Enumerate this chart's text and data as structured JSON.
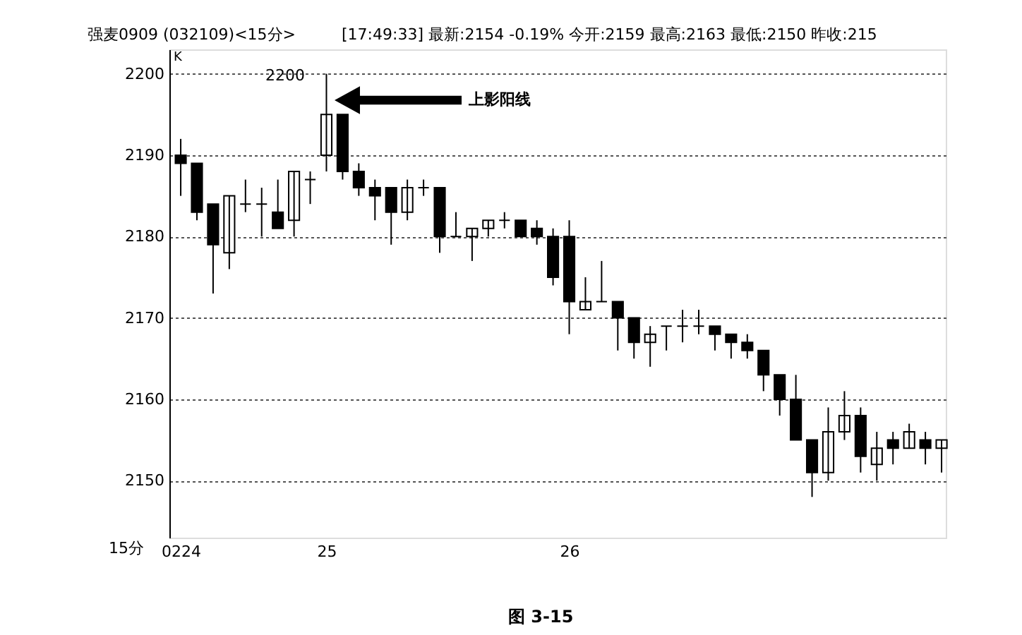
{
  "chart_data": {
    "type": "candlestick",
    "title": "强麦0909 (032109)<15分>",
    "subtitle": "[17:49:33] 最新:2154 -0.19% 今开:2159 最高:2163 最低:2150 昨收:215",
    "xlabel": "15分",
    "categories": [
      "0224",
      null,
      null,
      null,
      null,
      null,
      null,
      null,
      null,
      "25",
      null,
      null,
      null,
      null,
      null,
      null,
      null,
      null,
      null,
      null,
      null,
      null,
      null,
      null,
      "26",
      null,
      null,
      null,
      null,
      null,
      null,
      null,
      null,
      null,
      null,
      null,
      null,
      null,
      null,
      null,
      null,
      null,
      null,
      null,
      null,
      null,
      null,
      null
    ],
    "ohlc": [
      [
        2190,
        2192,
        2185,
        2189
      ],
      [
        2189,
        2189,
        2182,
        2183
      ],
      [
        2184,
        2184,
        2173,
        2179
      ],
      [
        2178,
        2185,
        2176,
        2185
      ],
      [
        2184,
        2187,
        2183,
        2184
      ],
      [
        2184,
        2186,
        2180,
        2184
      ],
      [
        2183,
        2187,
        2181,
        2181
      ],
      [
        2182,
        2188,
        2180,
        2188
      ],
      [
        2187,
        2188,
        2184,
        2187
      ],
      [
        2190,
        2200,
        2188,
        2195
      ],
      [
        2195,
        2195,
        2187,
        2188
      ],
      [
        2188,
        2189,
        2185,
        2186
      ],
      [
        2186,
        2187,
        2182,
        2185
      ],
      [
        2186,
        2186,
        2179,
        2183
      ],
      [
        2183,
        2187,
        2182,
        2186
      ],
      [
        2186,
        2187,
        2185,
        2186
      ],
      [
        2186,
        2186,
        2178,
        2180
      ],
      [
        2180,
        2183,
        2180,
        2180
      ],
      [
        2180,
        2181,
        2177,
        2181
      ],
      [
        2181,
        2182,
        2180,
        2182
      ],
      [
        2182,
        2183,
        2181,
        2182
      ],
      [
        2182,
        2182,
        2180,
        2180
      ],
      [
        2181,
        2182,
        2179,
        2180
      ],
      [
        2180,
        2181,
        2174,
        2175
      ],
      [
        2180,
        2182,
        2168,
        2172
      ],
      [
        2171,
        2175,
        2171,
        2172
      ],
      [
        2172,
        2177,
        2172,
        2172
      ],
      [
        2172,
        2172,
        2166,
        2170
      ],
      [
        2170,
        2170,
        2165,
        2167
      ],
      [
        2167,
        2169,
        2164,
        2168
      ],
      [
        2169,
        2169,
        2166,
        2169
      ],
      [
        2169,
        2171,
        2167,
        2169
      ],
      [
        2169,
        2171,
        2168,
        2169
      ],
      [
        2169,
        2169,
        2166,
        2168
      ],
      [
        2168,
        2168,
        2165,
        2167
      ],
      [
        2167,
        2168,
        2165,
        2166
      ],
      [
        2166,
        2166,
        2161,
        2163
      ],
      [
        2163,
        2163,
        2158,
        2160
      ],
      [
        2160,
        2163,
        2155,
        2155
      ],
      [
        2155,
        2155,
        2148,
        2151
      ],
      [
        2151,
        2159,
        2150,
        2156
      ],
      [
        2156,
        2161,
        2155,
        2158
      ],
      [
        2158,
        2159,
        2151,
        2153
      ],
      [
        2152,
        2156,
        2150,
        2154
      ],
      [
        2155,
        2156,
        2152,
        2154
      ],
      [
        2154,
        2157,
        2154,
        2156
      ],
      [
        2155,
        2156,
        2152,
        2154
      ],
      [
        2154,
        2155,
        2151,
        2155
      ]
    ],
    "colors": [
      "#000000",
      "#000000",
      "#000000",
      "#ffffff",
      "#000000",
      "#000000",
      "#000000",
      "#ffffff",
      "#000000",
      "#ffffff",
      "#000000",
      "#000000",
      "#000000",
      "#000000",
      "#ffffff",
      "#000000",
      "#000000",
      "#000000",
      "#ffffff",
      "#ffffff",
      "#000000",
      "#000000",
      "#000000",
      "#000000",
      "#000000",
      "#ffffff",
      "#000000",
      "#000000",
      "#000000",
      "#ffffff",
      "#000000",
      "#000000",
      "#000000",
      "#000000",
      "#000000",
      "#000000",
      "#000000",
      "#000000",
      "#000000",
      "#000000",
      "#ffffff",
      "#ffffff",
      "#000000",
      "#ffffff",
      "#000000",
      "#ffffff",
      "#000000",
      "#ffffff"
    ],
    "ylim": [
      2143,
      2203
    ],
    "yticks": [
      2150,
      2160,
      2170,
      2180,
      2190,
      2200
    ],
    "grid": "y",
    "annotations": [
      "K",
      "2200",
      "上影阳线",
      "图 3-15"
    ]
  }
}
